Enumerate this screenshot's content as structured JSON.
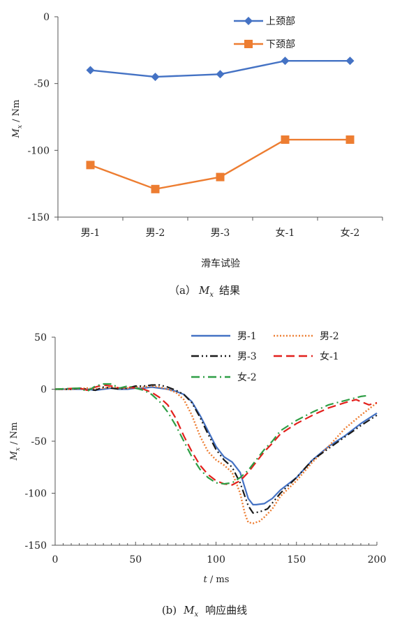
{
  "chart_data": [
    {
      "type": "line",
      "categories": [
        "男-1",
        "男-2",
        "男-3",
        "女-1",
        "女-2"
      ],
      "series": [
        {
          "name": "上颈部",
          "values": [
            -40,
            -45,
            -43,
            -33,
            -33
          ],
          "color": "#4472C4",
          "marker": "diamond"
        },
        {
          "name": "下颈部",
          "values": [
            -111,
            -129,
            -120,
            -92,
            -92
          ],
          "color": "#ED7D31",
          "marker": "square"
        }
      ],
      "ylim": [
        -150,
        0
      ],
      "yticks": [
        0,
        -50,
        -100,
        -150
      ],
      "ylabel_main": "M",
      "ylabel_sub": "x",
      "ylabel_unit": " / Nm",
      "xlabel": "滑车试验",
      "caption_prefix": "（a）",
      "caption_var": "M",
      "caption_sub": "x",
      "caption_text": "结果",
      "legend_position": "top-right",
      "grid": false
    },
    {
      "type": "line",
      "x_range": [
        0,
        200
      ],
      "xticks": [
        0,
        50,
        100,
        150,
        200
      ],
      "ylim": [
        -150,
        50
      ],
      "yticks": [
        50,
        0,
        -50,
        -100,
        -150
      ],
      "xlabel_main": "t",
      "xlabel_unit": " / ms",
      "ylabel_main": "M",
      "ylabel_sub": "x",
      "ylabel_unit": " / Nm",
      "caption_prefix": "(b)",
      "caption_var": "M",
      "caption_sub": "x",
      "caption_text": "响应曲线",
      "legend_position": "top-right",
      "grid": false,
      "series": [
        {
          "name": "男-1",
          "color": "#4472C4",
          "dash": "solid",
          "points": [
            [
              0,
              0
            ],
            [
              10,
              0
            ],
            [
              20,
              0
            ],
            [
              25,
              -1
            ],
            [
              30,
              0
            ],
            [
              35,
              1
            ],
            [
              40,
              0
            ],
            [
              45,
              0
            ],
            [
              50,
              1
            ],
            [
              55,
              1
            ],
            [
              60,
              2
            ],
            [
              65,
              1
            ],
            [
              70,
              0
            ],
            [
              75,
              -2
            ],
            [
              80,
              -5
            ],
            [
              85,
              -12
            ],
            [
              90,
              -25
            ],
            [
              95,
              -40
            ],
            [
              100,
              -55
            ],
            [
              105,
              -65
            ],
            [
              110,
              -70
            ],
            [
              115,
              -80
            ],
            [
              120,
              -105
            ],
            [
              123,
              -111
            ],
            [
              125,
              -111
            ],
            [
              130,
              -110
            ],
            [
              135,
              -105
            ],
            [
              140,
              -97
            ],
            [
              150,
              -85
            ],
            [
              160,
              -68
            ],
            [
              170,
              -55
            ],
            [
              180,
              -45
            ],
            [
              190,
              -33
            ],
            [
              200,
              -23
            ]
          ]
        },
        {
          "name": "男-2",
          "color": "#ED7D31",
          "dash": "dotted",
          "points": [
            [
              0,
              0
            ],
            [
              10,
              0
            ],
            [
              20,
              1
            ],
            [
              25,
              0
            ],
            [
              30,
              1
            ],
            [
              35,
              2
            ],
            [
              40,
              1
            ],
            [
              45,
              1
            ],
            [
              50,
              2
            ],
            [
              55,
              2
            ],
            [
              60,
              3
            ],
            [
              65,
              2
            ],
            [
              70,
              0
            ],
            [
              75,
              -3
            ],
            [
              80,
              -10
            ],
            [
              85,
              -25
            ],
            [
              90,
              -45
            ],
            [
              95,
              -60
            ],
            [
              100,
              -68
            ],
            [
              105,
              -73
            ],
            [
              110,
              -80
            ],
            [
              115,
              -100
            ],
            [
              118,
              -120
            ],
            [
              120,
              -128
            ],
            [
              123,
              -129
            ],
            [
              127,
              -127
            ],
            [
              130,
              -123
            ],
            [
              135,
              -115
            ],
            [
              140,
              -103
            ],
            [
              150,
              -88
            ],
            [
              160,
              -70
            ],
            [
              170,
              -55
            ],
            [
              180,
              -38
            ],
            [
              190,
              -25
            ],
            [
              200,
              -13
            ]
          ]
        },
        {
          "name": "男-3",
          "color": "#1a1a1a",
          "dash": "dashdotdot",
          "points": [
            [
              0,
              0
            ],
            [
              10,
              0
            ],
            [
              15,
              1
            ],
            [
              20,
              0
            ],
            [
              25,
              -1
            ],
            [
              30,
              2
            ],
            [
              35,
              1
            ],
            [
              40,
              0
            ],
            [
              45,
              1
            ],
            [
              50,
              3
            ],
            [
              55,
              3
            ],
            [
              60,
              4
            ],
            [
              65,
              4
            ],
            [
              70,
              2
            ],
            [
              75,
              -1
            ],
            [
              80,
              -5
            ],
            [
              85,
              -13
            ],
            [
              90,
              -27
            ],
            [
              95,
              -43
            ],
            [
              100,
              -58
            ],
            [
              105,
              -68
            ],
            [
              110,
              -75
            ],
            [
              115,
              -90
            ],
            [
              120,
              -112
            ],
            [
              123,
              -119
            ],
            [
              127,
              -118
            ],
            [
              132,
              -115
            ],
            [
              140,
              -100
            ],
            [
              150,
              -85
            ],
            [
              160,
              -68
            ],
            [
              170,
              -57
            ],
            [
              180,
              -46
            ],
            [
              190,
              -35
            ],
            [
              200,
              -25
            ]
          ]
        },
        {
          "name": "女-1",
          "color": "#E2201C",
          "dash": "dashed",
          "points": [
            [
              0,
              0
            ],
            [
              15,
              1
            ],
            [
              20,
              -1
            ],
            [
              25,
              2
            ],
            [
              30,
              4
            ],
            [
              35,
              3
            ],
            [
              40,
              1
            ],
            [
              45,
              2
            ],
            [
              50,
              1
            ],
            [
              55,
              0
            ],
            [
              60,
              -3
            ],
            [
              65,
              -8
            ],
            [
              70,
              -15
            ],
            [
              75,
              -28
            ],
            [
              80,
              -45
            ],
            [
              85,
              -60
            ],
            [
              90,
              -73
            ],
            [
              95,
              -82
            ],
            [
              100,
              -88
            ],
            [
              105,
              -91
            ],
            [
              110,
              -92
            ],
            [
              115,
              -88
            ],
            [
              120,
              -80
            ],
            [
              125,
              -70
            ],
            [
              130,
              -60
            ],
            [
              135,
              -52
            ],
            [
              140,
              -43
            ],
            [
              150,
              -33
            ],
            [
              160,
              -25
            ],
            [
              170,
              -18
            ],
            [
              180,
              -13
            ],
            [
              187,
              -10
            ],
            [
              195,
              -15
            ],
            [
              200,
              -13
            ]
          ]
        },
        {
          "name": "女-2",
          "color": "#2E9E45",
          "dash": "dashdot",
          "points": [
            [
              0,
              0
            ],
            [
              15,
              1
            ],
            [
              20,
              -2
            ],
            [
              25,
              3
            ],
            [
              30,
              5
            ],
            [
              35,
              5
            ],
            [
              40,
              1
            ],
            [
              45,
              3
            ],
            [
              50,
              1
            ],
            [
              55,
              -1
            ],
            [
              60,
              -5
            ],
            [
              65,
              -12
            ],
            [
              70,
              -22
            ],
            [
              75,
              -35
            ],
            [
              80,
              -50
            ],
            [
              85,
              -65
            ],
            [
              90,
              -77
            ],
            [
              95,
              -85
            ],
            [
              100,
              -90
            ],
            [
              105,
              -91
            ],
            [
              110,
              -90
            ],
            [
              115,
              -85
            ],
            [
              120,
              -78
            ],
            [
              125,
              -68
            ],
            [
              130,
              -58
            ],
            [
              135,
              -50
            ],
            [
              140,
              -40
            ],
            [
              150,
              -30
            ],
            [
              160,
              -22
            ],
            [
              170,
              -15
            ],
            [
              180,
              -11
            ],
            [
              190,
              -7
            ],
            [
              195,
              -6
            ]
          ]
        }
      ]
    }
  ]
}
